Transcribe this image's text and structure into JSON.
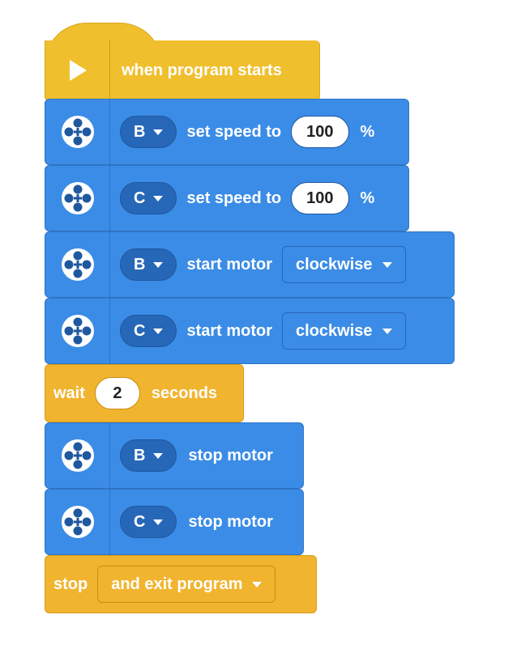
{
  "hat": {
    "label": "when program starts",
    "icon": "play-icon"
  },
  "colors": {
    "blue": "#3b8ce6",
    "yellow": "#f1b42f",
    "hat": "#f0bf2d"
  },
  "motor_blocks": [
    {
      "port": "B",
      "text": "set speed to",
      "value": "100",
      "suffix": "%"
    },
    {
      "port": "C",
      "text": "set speed to",
      "value": "100",
      "suffix": "%"
    },
    {
      "port": "B",
      "text": "start motor",
      "direction": "clockwise"
    },
    {
      "port": "C",
      "text": "start motor",
      "direction": "clockwise"
    }
  ],
  "wait_block": {
    "prefix": "wait",
    "value": "2",
    "suffix": "seconds"
  },
  "stop_motor_blocks": [
    {
      "port": "B",
      "text": "stop motor"
    },
    {
      "port": "C",
      "text": "stop motor"
    }
  ],
  "stop_block": {
    "label": "stop",
    "option": "and exit program"
  }
}
